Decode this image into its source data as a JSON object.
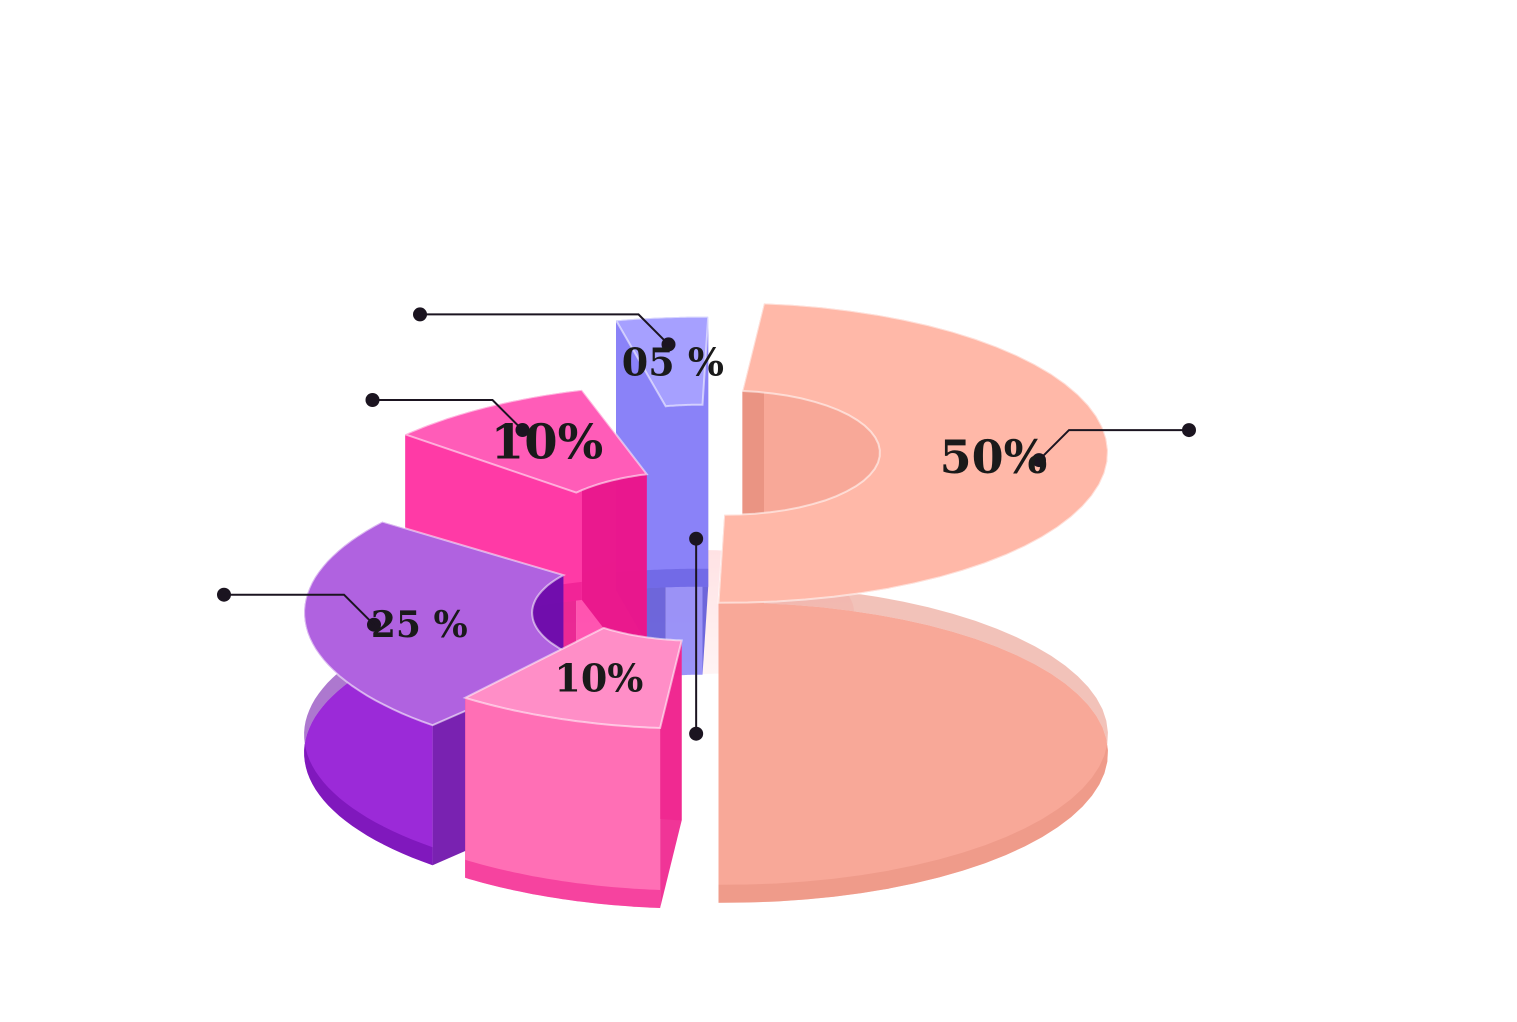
{
  "chart_data": {
    "type": "pie",
    "style": "3d-exploded-ring",
    "legend": "none",
    "slices": [
      {
        "label": "50%",
        "value": 50,
        "color": "#ffb8a8",
        "side": "#f8a898",
        "dark": "#e89080",
        "rise": 160
      },
      {
        "label": "10%",
        "value": 10,
        "color": "#ff8ec7",
        "side": "#ff6fb5",
        "dark": "#ee1f8c",
        "rise": 40
      },
      {
        "label": "25 %",
        "value": 25,
        "color": "#b062e0",
        "side": "#9b2ad8",
        "dark": "#6a0aa8",
        "rise": 0
      },
      {
        "label": "10%",
        "value": 10,
        "color": "#ff5cb8",
        "side": "#ff3aa6",
        "dark": "#e8138a",
        "rise": 70
      },
      {
        "label": "05 %",
        "value": 5,
        "color": "#a6a0ff",
        "side": "#8a82f8",
        "dark": "#5e58d8",
        "rise": 130
      }
    ]
  }
}
